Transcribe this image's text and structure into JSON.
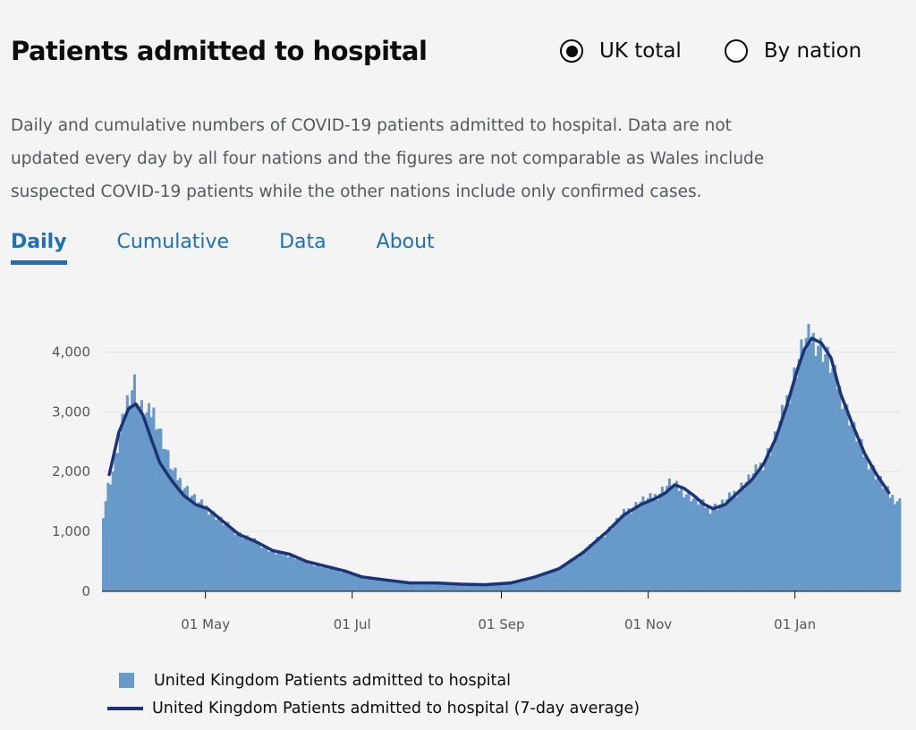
{
  "header": {
    "title": "Patients admitted to hospital",
    "radios": [
      {
        "label": "UK total",
        "selected": true
      },
      {
        "label": "By nation",
        "selected": false
      }
    ]
  },
  "description": "Daily and cumulative numbers of COVID-19 patients admitted to hospital. Data are not updated every day by all four nations and the figures are not comparable as Wales include suspected COVID-19 patients while the other nations include only confirmed cases.",
  "tabs": [
    {
      "label": "Daily",
      "active": true
    },
    {
      "label": "Cumulative",
      "active": false
    },
    {
      "label": "Data",
      "active": false
    },
    {
      "label": "About",
      "active": false
    }
  ],
  "colors": {
    "bars": "#6799c9",
    "line": "#1c3476",
    "accent": "#1d70b8"
  },
  "chart_data": {
    "type": "bar",
    "x_start": "2020-03-19",
    "x_end": "2021-02-14",
    "ylim": [
      0,
      4500
    ],
    "yticks": [
      {
        "value": 0,
        "label": "0"
      },
      {
        "value": 1000,
        "label": "1,000"
      },
      {
        "value": 2000,
        "label": "2,000"
      },
      {
        "value": 3000,
        "label": "3,000"
      },
      {
        "value": 4000,
        "label": "4,000"
      }
    ],
    "xticks": [
      {
        "date": "2020-05-01",
        "label": "01 May"
      },
      {
        "date": "2020-07-01",
        "label": "01 Jul"
      },
      {
        "date": "2020-09-01",
        "label": "01 Sep"
      },
      {
        "date": "2020-11-01",
        "label": "01 Nov"
      },
      {
        "date": "2021-01-01",
        "label": "01 Jan"
      }
    ],
    "series": [
      {
        "name": "United Kingdom Patients admitted to hospital",
        "kind": "bar",
        "points": [
          [
            "2020-03-19",
            1300
          ],
          [
            "2020-03-21",
            1750
          ],
          [
            "2020-03-23",
            2000
          ],
          [
            "2020-03-26",
            2600
          ],
          [
            "2020-03-29",
            3200
          ],
          [
            "2020-04-01",
            3500
          ],
          [
            "2020-04-03",
            3100
          ],
          [
            "2020-04-06",
            2950
          ],
          [
            "2020-04-09",
            3000
          ],
          [
            "2020-04-13",
            2500
          ],
          [
            "2020-04-17",
            2000
          ],
          [
            "2020-04-22",
            1750
          ],
          [
            "2020-04-27",
            1500
          ],
          [
            "2020-05-01",
            1400
          ],
          [
            "2020-05-08",
            1150
          ],
          [
            "2020-05-15",
            950
          ],
          [
            "2020-05-22",
            820
          ],
          [
            "2020-05-29",
            650
          ],
          [
            "2020-06-05",
            600
          ],
          [
            "2020-06-12",
            480
          ],
          [
            "2020-06-20",
            400
          ],
          [
            "2020-06-28",
            320
          ],
          [
            "2020-07-05",
            230
          ],
          [
            "2020-07-15",
            190
          ],
          [
            "2020-07-25",
            140
          ],
          [
            "2020-08-05",
            140
          ],
          [
            "2020-08-15",
            120
          ],
          [
            "2020-08-25",
            100
          ],
          [
            "2020-09-05",
            150
          ],
          [
            "2020-09-15",
            250
          ],
          [
            "2020-09-25",
            380
          ],
          [
            "2020-10-05",
            650
          ],
          [
            "2020-10-15",
            1000
          ],
          [
            "2020-10-22",
            1300
          ],
          [
            "2020-10-29",
            1500
          ],
          [
            "2020-11-03",
            1560
          ],
          [
            "2020-11-06",
            1650
          ],
          [
            "2020-11-10",
            1800
          ],
          [
            "2020-11-15",
            1700
          ],
          [
            "2020-11-20",
            1550
          ],
          [
            "2020-11-27",
            1380
          ],
          [
            "2020-12-03",
            1480
          ],
          [
            "2020-12-08",
            1680
          ],
          [
            "2020-12-14",
            1900
          ],
          [
            "2020-12-19",
            2150
          ],
          [
            "2020-12-24",
            2550
          ],
          [
            "2020-12-29",
            3200
          ],
          [
            "2021-01-02",
            3750
          ],
          [
            "2021-01-05",
            4150
          ],
          [
            "2021-01-08",
            4250
          ],
          [
            "2021-01-11",
            4150
          ],
          [
            "2021-01-15",
            3900
          ],
          [
            "2021-01-20",
            3350
          ],
          [
            "2021-01-25",
            2800
          ],
          [
            "2021-01-30",
            2300
          ],
          [
            "2021-02-05",
            1900
          ],
          [
            "2021-02-10",
            1600
          ],
          [
            "2021-02-14",
            1500
          ]
        ]
      },
      {
        "name": "United Kingdom Patients admitted to hospital (7-day average)",
        "kind": "line",
        "points": [
          [
            "2020-03-22",
            1950
          ],
          [
            "2020-03-26",
            2650
          ],
          [
            "2020-03-30",
            3050
          ],
          [
            "2020-04-02",
            3130
          ],
          [
            "2020-04-05",
            2950
          ],
          [
            "2020-04-08",
            2600
          ],
          [
            "2020-04-12",
            2150
          ],
          [
            "2020-04-17",
            1850
          ],
          [
            "2020-04-22",
            1600
          ],
          [
            "2020-04-27",
            1450
          ],
          [
            "2020-05-02",
            1380
          ],
          [
            "2020-05-08",
            1180
          ],
          [
            "2020-05-15",
            950
          ],
          [
            "2020-05-22",
            830
          ],
          [
            "2020-05-29",
            680
          ],
          [
            "2020-06-05",
            620
          ],
          [
            "2020-06-12",
            500
          ],
          [
            "2020-06-20",
            420
          ],
          [
            "2020-06-28",
            340
          ],
          [
            "2020-07-05",
            240
          ],
          [
            "2020-07-15",
            190
          ],
          [
            "2020-07-25",
            140
          ],
          [
            "2020-08-05",
            140
          ],
          [
            "2020-08-15",
            120
          ],
          [
            "2020-08-25",
            110
          ],
          [
            "2020-09-05",
            140
          ],
          [
            "2020-09-15",
            240
          ],
          [
            "2020-09-25",
            380
          ],
          [
            "2020-10-05",
            650
          ],
          [
            "2020-10-15",
            1000
          ],
          [
            "2020-10-22",
            1280
          ],
          [
            "2020-10-29",
            1450
          ],
          [
            "2020-11-04",
            1550
          ],
          [
            "2020-11-08",
            1640
          ],
          [
            "2020-11-12",
            1780
          ],
          [
            "2020-11-16",
            1720
          ],
          [
            "2020-11-20",
            1600
          ],
          [
            "2020-11-24",
            1460
          ],
          [
            "2020-11-28",
            1380
          ],
          [
            "2020-12-03",
            1450
          ],
          [
            "2020-12-08",
            1640
          ],
          [
            "2020-12-14",
            1860
          ],
          [
            "2020-12-19",
            2130
          ],
          [
            "2020-12-24",
            2550
          ],
          [
            "2020-12-29",
            3150
          ],
          [
            "2021-01-02",
            3700
          ],
          [
            "2021-01-05",
            4050
          ],
          [
            "2021-01-08",
            4230
          ],
          [
            "2021-01-12",
            4150
          ],
          [
            "2021-01-16",
            3900
          ],
          [
            "2021-01-20",
            3300
          ],
          [
            "2021-01-25",
            2780
          ],
          [
            "2021-01-30",
            2300
          ],
          [
            "2021-02-04",
            1950
          ],
          [
            "2021-02-09",
            1650
          ]
        ]
      }
    ]
  }
}
